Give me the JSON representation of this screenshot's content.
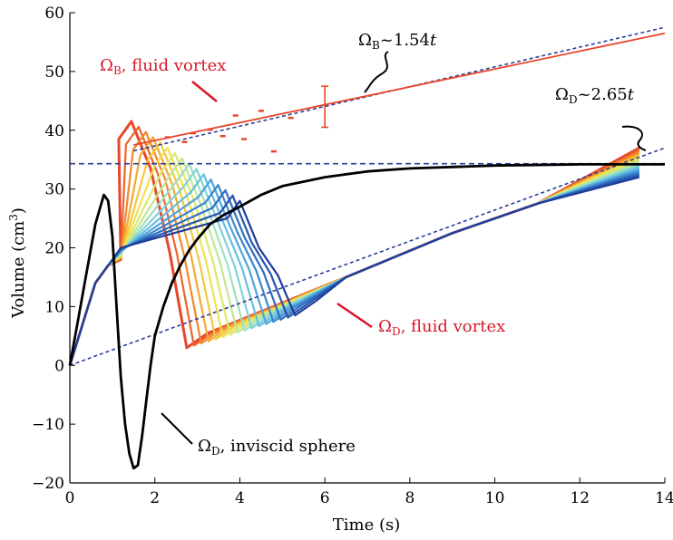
{
  "chart_data": {
    "type": "line",
    "xlabel": "Time (s)",
    "ylabel_main": "Volume (cm",
    "ylabel_sup": "3",
    "ylabel_tail": ")",
    "xlim": [
      0,
      14
    ],
    "ylim": [
      -20,
      60
    ],
    "x_ticks": [
      "0",
      "2",
      "4",
      "6",
      "8",
      "10",
      "12",
      "14"
    ],
    "y_ticks": [
      "−20",
      "−10",
      "0",
      "10",
      "20",
      "30",
      "40",
      "50",
      "60"
    ],
    "grid": false,
    "colors": {
      "sphere": "#000000",
      "fit_dashed": "#2b3f9a",
      "fit_solid": "#e8462a",
      "label_red": "#d7182a",
      "family_start": "#e8462a",
      "family_end": "#1f3d9c"
    },
    "series": [
      {
        "key": "inviscid_sphere",
        "x": [
          0,
          0.2,
          0.4,
          0.6,
          0.8,
          0.9,
          1.0,
          1.1,
          1.2,
          1.3,
          1.4,
          1.5,
          1.6,
          1.7,
          1.8,
          1.9,
          2.0,
          2.2,
          2.4,
          2.6,
          2.8,
          3.0,
          3.3,
          3.6,
          4.0,
          4.5,
          5.0,
          6.0,
          7.0,
          8.0,
          10.0,
          12.0,
          14.0
        ],
        "y": [
          0,
          8,
          16,
          24,
          29,
          28,
          22,
          10,
          -2,
          -10,
          -15,
          -17.5,
          -17,
          -12,
          -6,
          0,
          5,
          10,
          14,
          17,
          19.5,
          21.5,
          24,
          25.5,
          27,
          29,
          30.5,
          32,
          33,
          33.5,
          34,
          34.2,
          34.2
        ]
      },
      {
        "key": "omega_b_linear",
        "x": [
          1.5,
          14
        ],
        "y": [
          37.5,
          56.5
        ]
      },
      {
        "key": "omega_b_fit_dashed",
        "x": [
          1.5,
          14
        ],
        "y": [
          36.5,
          57.5
        ]
      },
      {
        "key": "omega_d_fit_dashed",
        "x": [
          0,
          14
        ],
        "y": [
          0,
          37
        ]
      },
      {
        "key": "asymptote_dashed",
        "x": [
          0,
          14
        ],
        "y": [
          34.3,
          34.3
        ]
      },
      {
        "key": "omega_b_scatter",
        "x": [
          2.3,
          2.7,
          2.9,
          3.3,
          3.6,
          3.9,
          4.1,
          4.5,
          4.8,
          5.2
        ],
        "y": [
          38.8,
          38,
          39.5,
          40.1,
          39,
          42.5,
          38.5,
          43.3,
          36.4,
          42.1
        ]
      }
    ],
    "error_bar": {
      "x": 6.0,
      "y_low": 40.5,
      "y_high": 47.5
    },
    "fluid_family": {
      "count": 16,
      "peak_x_start": 1.45,
      "peak_x_step": 0.17,
      "peak_y_start": 41.5,
      "peak_y_end": 28,
      "min_y_start": 3,
      "min_y_end": 8.5,
      "end_x": 13.4,
      "end_y_start": 37,
      "end_y_end": 32
    },
    "annotations": {
      "omega_b_fit": {
        "symbol": "Ω",
        "sub": "B",
        "text": "~1.54",
        "var": "t"
      },
      "omega_d_fit": {
        "symbol": "Ω",
        "sub": "D",
        "text": "~2.65",
        "var": "t"
      },
      "omega_b_fluid": {
        "symbol": "Ω",
        "sub": "B",
        "text": ", fluid vortex"
      },
      "omega_d_fluid": {
        "symbol": "Ω",
        "sub": "D",
        "text": ", fluid vortex"
      },
      "omega_d_sphere": {
        "symbol": "Ω",
        "sub": "D",
        "text": ", inviscid sphere"
      }
    }
  }
}
